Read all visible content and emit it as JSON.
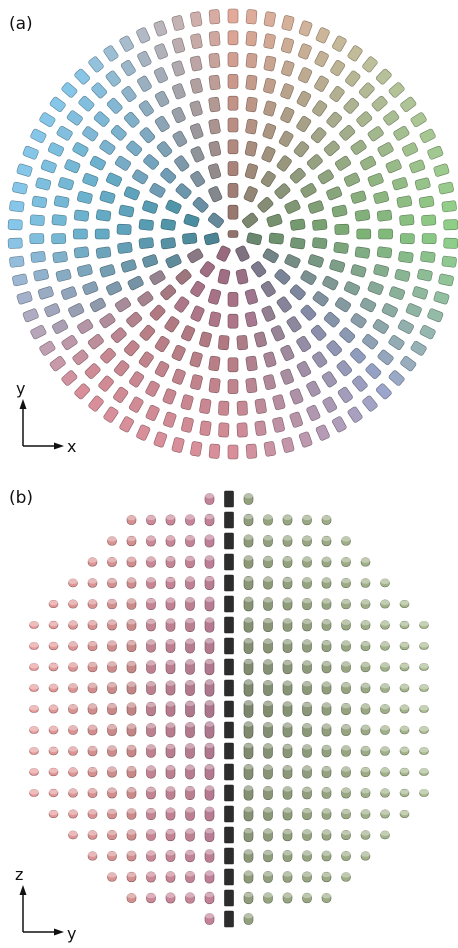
{
  "panels": [
    {
      "id": "a",
      "label": "(a)",
      "axes": {
        "horizontal": "x",
        "vertical": "y"
      }
    },
    {
      "id": "b",
      "label": "(b)",
      "axes": {
        "horizontal": "y",
        "vertical": "z"
      }
    }
  ],
  "colors": {
    "top": "#e3a99a",
    "top_right": "#b7c19a",
    "right": "#8dcf86",
    "bottom_right": "#9aa6cc",
    "bottom": "#d88f9a",
    "left": "#86c6e8",
    "center_cyan": "#32c3de",
    "center_pink": "#ee8fd0",
    "spine": "#2d2d2d",
    "left_half": "#e89a9a",
    "right_half": "#a8b98e"
  }
}
